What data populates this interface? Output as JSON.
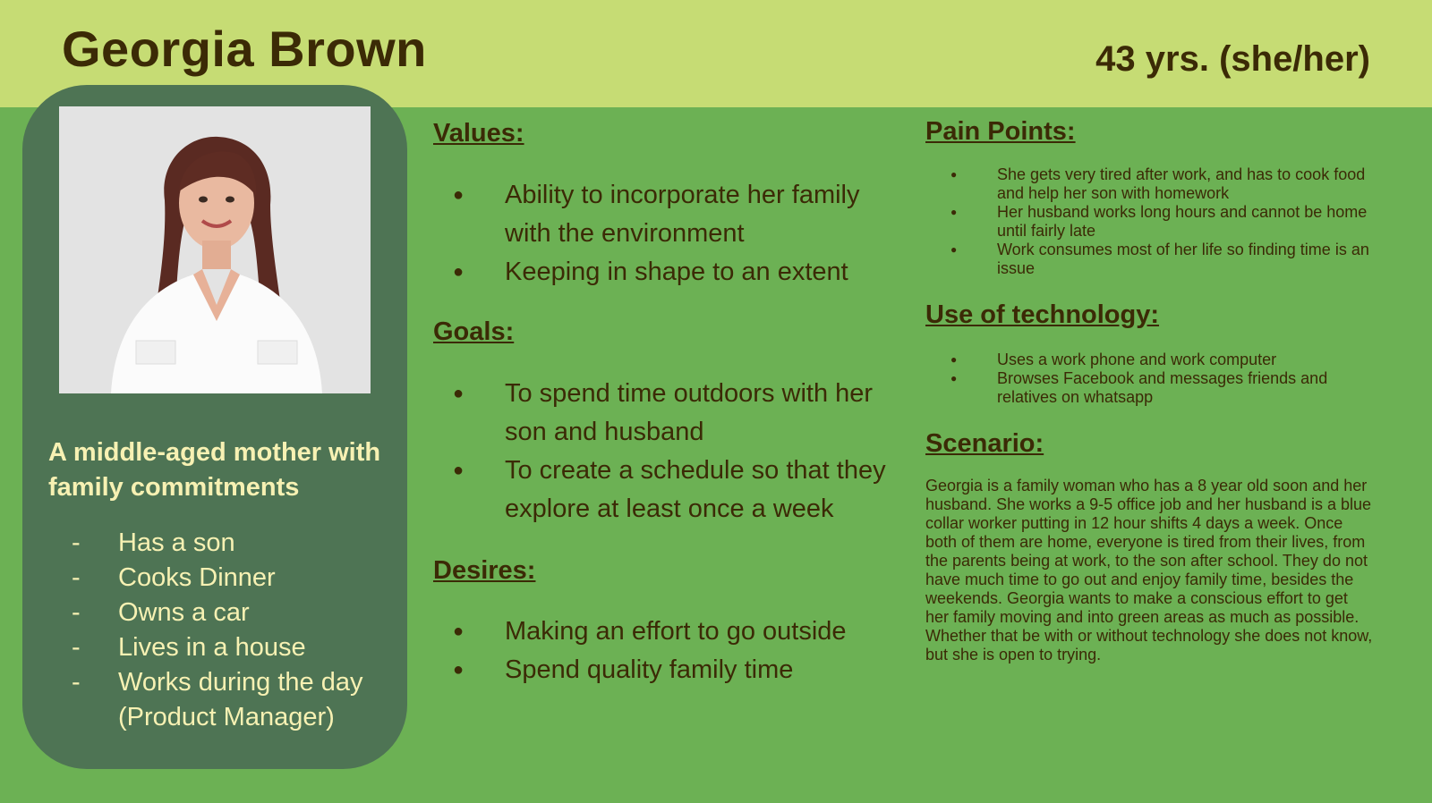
{
  "header": {
    "name": "Georgia Brown",
    "age": "43 yrs. (she/her)"
  },
  "profile": {
    "tagline": "A middle-aged mother with family commitments",
    "facts": [
      "Has a son",
      "Cooks Dinner",
      "Owns a car",
      "Lives in a house",
      "Works during the day (Product Manager)"
    ],
    "bullet_char": "-"
  },
  "values": {
    "heading": "Values:",
    "items": [
      "Ability to incorporate her family with the environment",
      "Keeping in shape to an extent"
    ]
  },
  "goals": {
    "heading": "Goals:",
    "items": [
      "To spend time outdoors with her son and husband",
      "To create a schedule so that they explore at least once a week"
    ]
  },
  "desires": {
    "heading": "Desires:",
    "items": [
      "Making an effort to go outside",
      "Spend quality family time"
    ]
  },
  "pain_points": {
    "heading": "Pain Points:",
    "items": [
      "She gets very tired after work, and has to cook food and help her son with homework",
      "Her husband works long hours and cannot be home until fairly late",
      "Work consumes most of her life so finding time is an issue"
    ]
  },
  "technology": {
    "heading": "Use of technology:",
    "items": [
      "Uses a work phone and work computer",
      "Browses Facebook and messages friends and relatives on whatsapp"
    ]
  },
  "scenario": {
    "heading": "Scenario:",
    "text": "Georgia is a family woman who has a 8 year old soon and her husband. She works a 9-5 office job and her husband is a blue collar worker putting in 12 hour shifts 4 days a week. Once both of them are home, everyone is tired from their lives, from the parents being at work, to the son after school. They do not have much time to go out and enjoy family time, besides the weekends. Georgia wants to make a conscious effort to get her family moving and into green areas as much as possible. Whether that be with or without technology she does not know, but she is open to trying."
  },
  "bullet_symbol": "●",
  "colors": {
    "background": "#6cb154",
    "header_band": "#c6dc74",
    "profile_card": "#4e7454",
    "text_dark": "#3b2a06",
    "text_light": "#f7f1b3"
  }
}
